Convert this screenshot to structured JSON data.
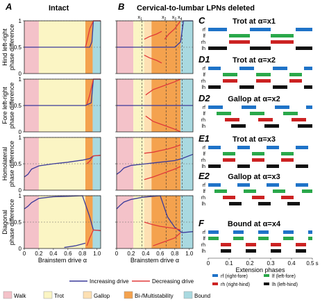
{
  "panel_A": {
    "letter": "A",
    "title": "Intact"
  },
  "panel_B": {
    "letter": "B",
    "title": "Cervical-to-lumbar LPNs deleted"
  },
  "ylabels": [
    [
      "Hind left-right",
      "phase difference"
    ],
    [
      "Fore left-right",
      "phase difference"
    ],
    [
      "Homolateral",
      "phase difference"
    ],
    [
      "Diagonal",
      "phase difference"
    ]
  ],
  "xlabel": "Brainstem drive α",
  "x_ticks": [
    "0",
    "0.2",
    "0.4",
    "0.6",
    "0.8",
    "1.0"
  ],
  "y_ticks": [
    "0",
    "0.5",
    "1"
  ],
  "alpha_markers": [
    "x1",
    "x2",
    "x3",
    "x4"
  ],
  "alpha_marker_values": [
    0.35,
    0.68,
    0.82,
    0.9
  ],
  "regions_A": [
    {
      "gait": "Walk",
      "from": 0.0,
      "to": 0.2
    },
    {
      "gait": "Trot",
      "from": 0.2,
      "to": 0.84
    },
    {
      "gait": "Bi-/Multistability",
      "from": 0.84,
      "to": 0.94
    },
    {
      "gait": "Bound",
      "from": 0.94,
      "to": 1.05
    }
  ],
  "regions_B": [
    {
      "gait": "Walk",
      "from": 0.0,
      "to": 0.23
    },
    {
      "gait": "Trot",
      "from": 0.23,
      "to": 0.38
    },
    {
      "gait": "Gallop",
      "from": 0.38,
      "to": 0.48
    },
    {
      "gait": "Bi-/Multistability",
      "from": 0.48,
      "to": 0.88
    },
    {
      "gait": "Bound",
      "from": 0.88,
      "to": 1.05
    }
  ],
  "legend": {
    "increasing": "Increasing drive",
    "decreasing": "Decreasing drive",
    "gaits": [
      "Walk",
      "Trot",
      "Gallop",
      "Bi-/Multistability",
      "Bound"
    ]
  },
  "colors": {
    "walk": "#f4c2c9",
    "trot": "#fbf5c4",
    "gallop": "#fde0b3",
    "bi": "#f4a24e",
    "bound": "#a9d9e0",
    "increasing": "#3a3a9a",
    "decreasing": "#e03a3a",
    "rf": "#1f73c8",
    "lf": "#2aa84a",
    "rh": "#cc2222",
    "lh": "#111111"
  },
  "right_panels": [
    {
      "letter": "C",
      "title": "Trot at α=x1"
    },
    {
      "letter": "D1",
      "title": "Trot at α=x2"
    },
    {
      "letter": "D2",
      "title": "Gallop at α=x2"
    },
    {
      "letter": "E1",
      "title": "Trot at α=x3"
    },
    {
      "letter": "E2",
      "title": "Gallop at α=x3"
    },
    {
      "letter": "F",
      "title": "Bound at α=x4"
    }
  ],
  "limb_labels": [
    "rf",
    "lf",
    "rh",
    "lh"
  ],
  "phase_ticks": [
    "0",
    "0.1",
    "0.2",
    "0.3",
    "0.4",
    "0.5 s"
  ],
  "phase_xlabel": "Extension phases",
  "limb_legend": [
    "rf (right-fore)",
    "lf (left-fore)",
    "rh (right-hind)",
    "lh (left-hind)"
  ],
  "chart_data": [
    {
      "type": "line",
      "panel": "A-hind-left-right",
      "xlim": [
        0,
        1.05
      ],
      "ylim": [
        0,
        1
      ],
      "series": [
        {
          "name": "Increasing drive",
          "x": [
            0.0,
            0.2,
            0.5,
            0.84,
            0.9,
            0.93,
            0.95,
            1.05
          ],
          "y": [
            0.5,
            0.5,
            0.5,
            0.5,
            0.5,
            0.6,
            1.0,
            1.0
          ]
        },
        {
          "name": "Decreasing drive",
          "x": [
            1.05,
            0.95,
            0.9,
            0.86,
            0.84
          ],
          "y": [
            1.0,
            1.0,
            0.85,
            0.6,
            0.5
          ]
        }
      ]
    },
    {
      "type": "line",
      "panel": "A-fore-left-right",
      "xlim": [
        0,
        1.05
      ],
      "ylim": [
        0,
        1
      ],
      "series": [
        {
          "name": "Increasing drive",
          "x": [
            0.0,
            0.5,
            0.84,
            0.92,
            0.95,
            1.05
          ],
          "y": [
            0.5,
            0.5,
            0.5,
            0.55,
            1.0,
            1.0
          ]
        },
        {
          "name": "Decreasing drive",
          "x": [
            1.05,
            0.95,
            0.9,
            0.86
          ],
          "y": [
            1.0,
            1.0,
            0.7,
            0.52
          ]
        }
      ]
    },
    {
      "type": "line",
      "panel": "A-homolateral",
      "xlim": [
        0,
        1.05
      ],
      "ylim": [
        0,
        1
      ],
      "series": [
        {
          "name": "Increasing drive",
          "x": [
            0.0,
            0.05,
            0.1,
            0.2,
            0.4,
            0.6,
            0.8,
            0.9,
            0.95,
            1.05
          ],
          "y": [
            0.25,
            0.3,
            0.4,
            0.46,
            0.5,
            0.53,
            0.57,
            0.6,
            0.65,
            0.66
          ]
        },
        {
          "name": "Decreasing drive",
          "x": [
            1.05,
            0.95,
            0.9,
            0.86
          ],
          "y": [
            0.66,
            0.65,
            0.55,
            0.5
          ]
        }
      ]
    },
    {
      "type": "line",
      "panel": "A-diagonal",
      "xlim": [
        0,
        1.05
      ],
      "ylim": [
        0,
        1
      ],
      "series": [
        {
          "name": "Increasing drive",
          "x": [
            0.0,
            0.05,
            0.1,
            0.2,
            0.4,
            0.6,
            0.8,
            0.9,
            0.95,
            1.05
          ],
          "y": [
            0.75,
            0.8,
            0.87,
            0.95,
            0.98,
            0.99,
            1.0,
            0.6,
            0.35,
            0.34
          ]
        },
        {
          "name": "Increasing drive (lower)",
          "x": [
            0.55,
            0.7,
            0.84
          ],
          "y": [
            0.02,
            0.05,
            0.1
          ]
        },
        {
          "name": "Decreasing drive",
          "x": [
            1.05,
            0.95,
            0.9,
            0.86
          ],
          "y": [
            0.34,
            0.35,
            0.2,
            0.05
          ]
        }
      ]
    },
    {
      "type": "line",
      "panel": "B-hind-left-right",
      "xlim": [
        0,
        1.05
      ],
      "ylim": [
        0,
        1
      ],
      "series": [
        {
          "name": "Increasing drive",
          "x": [
            0.0,
            0.3,
            0.5,
            0.7,
            0.8,
            0.88,
            0.92,
            1.05
          ],
          "y": [
            0.5,
            0.5,
            0.5,
            0.5,
            0.5,
            0.6,
            1.0,
            1.0
          ]
        },
        {
          "name": "Decreasing drive",
          "x": [
            0.38,
            0.45,
            0.55,
            0.62
          ],
          "y": [
            0.35,
            0.3,
            0.25,
            0.2
          ]
        },
        {
          "name": "Decreasing drive 2",
          "x": [
            0.66,
            0.72,
            0.8,
            0.88
          ],
          "y": [
            0.65,
            0.75,
            0.85,
            1.0
          ]
        },
        {
          "name": "Decreasing drive 3",
          "x": [
            0.38,
            0.45,
            0.55,
            0.62
          ],
          "y": [
            0.65,
            0.7,
            0.75,
            0.8
          ]
        }
      ]
    },
    {
      "type": "line",
      "panel": "B-fore-left-right",
      "xlim": [
        0,
        1.05
      ],
      "ylim": [
        0,
        1
      ],
      "series": [
        {
          "name": "Increasing drive",
          "x": [
            0.0,
            0.4,
            0.6,
            0.8,
            0.9,
            1.05
          ],
          "y": [
            0.5,
            0.5,
            0.5,
            0.5,
            0.5,
            0.5
          ]
        },
        {
          "name": "Decreasing drive",
          "x": [
            0.4,
            0.5,
            0.6,
            0.7,
            0.8,
            0.88
          ],
          "y": [
            0.7,
            0.8,
            0.85,
            0.9,
            0.95,
            1.0
          ]
        },
        {
          "name": "Decreasing drive 2",
          "x": [
            0.4,
            0.5,
            0.6,
            0.7,
            0.8,
            0.88
          ],
          "y": [
            0.3,
            0.2,
            0.15,
            0.1,
            0.05,
            0.0
          ]
        }
      ]
    },
    {
      "type": "line",
      "panel": "B-homolateral",
      "xlim": [
        0,
        1.05
      ],
      "ylim": [
        0,
        1
      ],
      "series": [
        {
          "name": "Increasing drive",
          "x": [
            0.0,
            0.05,
            0.1,
            0.2,
            0.4,
            0.6,
            0.8,
            0.9,
            1.05
          ],
          "y": [
            0.3,
            0.35,
            0.42,
            0.47,
            0.5,
            0.53,
            0.56,
            0.6,
            0.68
          ]
        },
        {
          "name": "Decreasing drive",
          "x": [
            0.38,
            0.5,
            0.6,
            0.7,
            0.8,
            0.88
          ],
          "y": [
            0.2,
            0.25,
            0.3,
            0.35,
            0.4,
            0.45
          ]
        },
        {
          "name": "Decreasing drive 2",
          "x": [
            0.38,
            0.5,
            0.6,
            0.7,
            0.8,
            0.88
          ],
          "y": [
            0.7,
            0.72,
            0.75,
            0.78,
            0.82,
            0.86
          ]
        }
      ]
    },
    {
      "type": "line",
      "panel": "B-diagonal",
      "xlim": [
        0,
        1.05
      ],
      "ylim": [
        0,
        1
      ],
      "series": [
        {
          "name": "Increasing drive",
          "x": [
            0.0,
            0.05,
            0.1,
            0.2,
            0.35,
            0.5,
            0.6,
            0.7,
            0.8,
            0.9,
            1.05
          ],
          "y": [
            0.75,
            0.82,
            0.88,
            0.93,
            0.97,
            0.99,
            1.0,
            0.6,
            0.4,
            0.3,
            0.32
          ]
        },
        {
          "name": "Decreasing drive",
          "x": [
            0.38,
            0.5,
            0.6,
            0.7,
            0.8,
            0.88
          ],
          "y": [
            0.5,
            0.45,
            0.42,
            0.4,
            0.38,
            0.35
          ]
        },
        {
          "name": "Decreasing drive 2",
          "x": [
            0.5,
            0.6,
            0.7,
            0.8,
            0.88
          ],
          "y": [
            0.05,
            0.1,
            0.15,
            0.2,
            0.3
          ]
        }
      ]
    },
    {
      "type": "bar",
      "panel": "C",
      "note": "extension phase bars (start, end in s)",
      "xlim": [
        0,
        0.5
      ],
      "series": [
        {
          "name": "rf",
          "segments": [
            [
              0.0,
              0.09
            ],
            [
              0.2,
              0.3
            ],
            [
              0.42,
              0.5
            ]
          ]
        },
        {
          "name": "lf",
          "segments": [
            [
              0.1,
              0.2
            ],
            [
              0.3,
              0.41
            ]
          ]
        },
        {
          "name": "rh",
          "segments": [
            [
              0.1,
              0.2
            ],
            [
              0.3,
              0.41
            ]
          ]
        },
        {
          "name": "lh",
          "segments": [
            [
              0.0,
              0.09
            ],
            [
              0.2,
              0.3
            ],
            [
              0.42,
              0.5
            ]
          ]
        }
      ]
    },
    {
      "type": "bar",
      "panel": "D1",
      "xlim": [
        0,
        0.5
      ],
      "series": [
        {
          "name": "rf",
          "segments": [
            [
              0.0,
              0.06
            ],
            [
              0.15,
              0.22
            ],
            [
              0.31,
              0.38
            ],
            [
              0.46,
              0.5
            ]
          ]
        },
        {
          "name": "lf",
          "segments": [
            [
              0.07,
              0.14
            ],
            [
              0.23,
              0.3
            ],
            [
              0.39,
              0.45
            ]
          ]
        },
        {
          "name": "rh",
          "segments": [
            [
              0.07,
              0.14
            ],
            [
              0.23,
              0.3
            ],
            [
              0.39,
              0.45
            ]
          ]
        },
        {
          "name": "lh",
          "segments": [
            [
              0.0,
              0.06
            ],
            [
              0.15,
              0.22
            ],
            [
              0.31,
              0.38
            ],
            [
              0.46,
              0.5
            ]
          ]
        }
      ]
    },
    {
      "type": "bar",
      "panel": "D2",
      "xlim": [
        0,
        0.5
      ],
      "series": [
        {
          "name": "rf",
          "segments": [
            [
              0.0,
              0.07
            ],
            [
              0.16,
              0.23
            ],
            [
              0.32,
              0.39
            ],
            [
              0.47,
              0.5
            ]
          ]
        },
        {
          "name": "lf",
          "segments": [
            [
              0.04,
              0.11
            ],
            [
              0.2,
              0.27
            ],
            [
              0.36,
              0.43
            ]
          ]
        },
        {
          "name": "rh",
          "segments": [
            [
              0.08,
              0.15
            ],
            [
              0.24,
              0.31
            ],
            [
              0.4,
              0.47
            ]
          ]
        },
        {
          "name": "lh",
          "segments": [
            [
              0.11,
              0.18
            ],
            [
              0.27,
              0.34
            ],
            [
              0.43,
              0.5
            ]
          ]
        }
      ]
    },
    {
      "type": "bar",
      "panel": "E1",
      "xlim": [
        0,
        0.5
      ],
      "series": [
        {
          "name": "rf",
          "segments": [
            [
              0.0,
              0.06
            ],
            [
              0.14,
              0.2
            ],
            [
              0.28,
              0.34
            ],
            [
              0.42,
              0.48
            ]
          ]
        },
        {
          "name": "lf",
          "segments": [
            [
              0.07,
              0.13
            ],
            [
              0.21,
              0.27
            ],
            [
              0.35,
              0.41
            ]
          ]
        },
        {
          "name": "rh",
          "segments": [
            [
              0.07,
              0.13
            ],
            [
              0.21,
              0.27
            ],
            [
              0.35,
              0.41
            ]
          ]
        },
        {
          "name": "lh",
          "segments": [
            [
              0.0,
              0.06
            ],
            [
              0.14,
              0.2
            ],
            [
              0.28,
              0.34
            ],
            [
              0.42,
              0.48
            ]
          ]
        }
      ]
    },
    {
      "type": "bar",
      "panel": "E2",
      "xlim": [
        0,
        0.5
      ],
      "series": [
        {
          "name": "rf",
          "segments": [
            [
              0.0,
              0.06
            ],
            [
              0.14,
              0.2
            ],
            [
              0.28,
              0.34
            ],
            [
              0.42,
              0.48
            ]
          ]
        },
        {
          "name": "lf",
          "segments": [
            [
              0.03,
              0.09
            ],
            [
              0.17,
              0.23
            ],
            [
              0.31,
              0.37
            ],
            [
              0.45,
              0.5
            ]
          ]
        },
        {
          "name": "rh",
          "segments": [
            [
              0.07,
              0.13
            ],
            [
              0.21,
              0.27
            ],
            [
              0.35,
              0.41
            ]
          ]
        },
        {
          "name": "lh",
          "segments": [
            [
              0.1,
              0.16
            ],
            [
              0.24,
              0.3
            ],
            [
              0.38,
              0.44
            ]
          ]
        }
      ]
    },
    {
      "type": "bar",
      "panel": "F",
      "xlim": [
        0,
        0.5
      ],
      "series": [
        {
          "name": "rf",
          "segments": [
            [
              0.0,
              0.05
            ],
            [
              0.12,
              0.17
            ],
            [
              0.24,
              0.29
            ],
            [
              0.36,
              0.41
            ],
            [
              0.48,
              0.5
            ]
          ]
        },
        {
          "name": "lf",
          "segments": [
            [
              0.0,
              0.05
            ],
            [
              0.12,
              0.17
            ],
            [
              0.24,
              0.29
            ],
            [
              0.36,
              0.41
            ],
            [
              0.48,
              0.5
            ]
          ]
        },
        {
          "name": "rh",
          "segments": [
            [
              0.06,
              0.11
            ],
            [
              0.18,
              0.23
            ],
            [
              0.3,
              0.35
            ],
            [
              0.42,
              0.47
            ]
          ]
        },
        {
          "name": "lh",
          "segments": [
            [
              0.06,
              0.11
            ],
            [
              0.18,
              0.23
            ],
            [
              0.3,
              0.35
            ],
            [
              0.42,
              0.47
            ]
          ]
        }
      ]
    }
  ]
}
